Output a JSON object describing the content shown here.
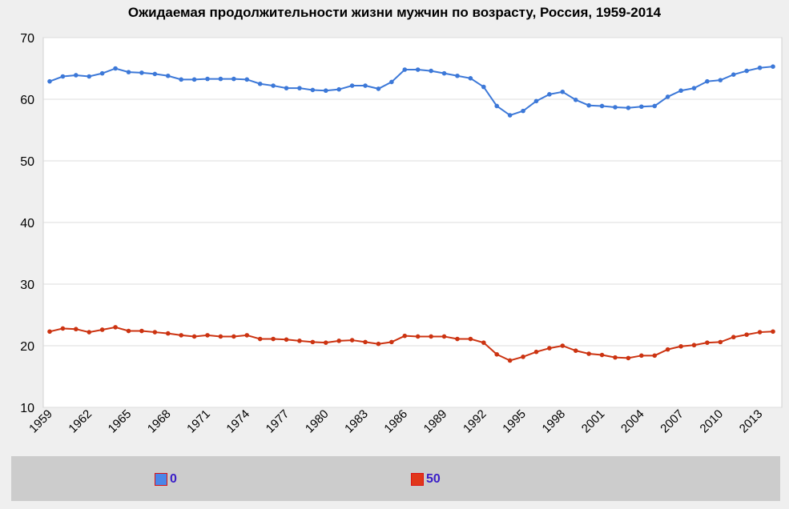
{
  "chart_data": {
    "type": "line",
    "title": "Ожидаемая продолжительности жизни мужчин по возрасту, Россия, 1959-2014",
    "xlabel": "",
    "ylabel": "",
    "ylim": [
      10,
      70
    ],
    "yticks": [
      "10",
      "20",
      "30",
      "40",
      "50",
      "60",
      "70"
    ],
    "xticks": [
      "1959",
      "1962",
      "1965",
      "1968",
      "1971",
      "1974",
      "1977",
      "1980",
      "1983",
      "1986",
      "1989",
      "1992",
      "1995",
      "1998",
      "2001",
      "2004",
      "2007",
      "2010",
      "2013"
    ],
    "x": [
      1959,
      1960,
      1961,
      1962,
      1963,
      1964,
      1965,
      1966,
      1967,
      1968,
      1969,
      1970,
      1971,
      1972,
      1973,
      1974,
      1975,
      1976,
      1977,
      1978,
      1979,
      1980,
      1981,
      1982,
      1983,
      1984,
      1985,
      1986,
      1987,
      1988,
      1989,
      1990,
      1991,
      1992,
      1993,
      1994,
      1995,
      1996,
      1997,
      1998,
      1999,
      2000,
      2001,
      2002,
      2003,
      2004,
      2005,
      2006,
      2007,
      2008,
      2009,
      2010,
      2011,
      2012,
      2013,
      2014
    ],
    "grid": true,
    "legend_position": "bottom",
    "series": [
      {
        "name": "0",
        "color": "#3c78d8",
        "values": [
          62.9,
          63.7,
          63.9,
          63.7,
          64.2,
          65.0,
          64.4,
          64.3,
          64.1,
          63.8,
          63.2,
          63.2,
          63.3,
          63.3,
          63.3,
          63.2,
          62.5,
          62.2,
          61.8,
          61.8,
          61.5,
          61.4,
          61.6,
          62.2,
          62.2,
          61.7,
          62.8,
          64.8,
          64.8,
          64.6,
          64.2,
          63.8,
          63.4,
          62.0,
          58.9,
          57.4,
          58.1,
          59.7,
          60.8,
          61.2,
          59.9,
          59.0,
          58.9,
          58.7,
          58.6,
          58.8,
          58.9,
          60.4,
          61.4,
          61.8,
          62.9,
          63.1,
          64.0,
          64.6,
          65.1,
          65.3
        ]
      },
      {
        "name": "50",
        "color": "#cc3311",
        "values": [
          22.3,
          22.8,
          22.7,
          22.2,
          22.6,
          23.0,
          22.4,
          22.4,
          22.2,
          22.0,
          21.7,
          21.5,
          21.7,
          21.5,
          21.5,
          21.7,
          21.1,
          21.1,
          21.0,
          20.8,
          20.6,
          20.5,
          20.8,
          20.9,
          20.6,
          20.3,
          20.6,
          21.6,
          21.5,
          21.5,
          21.5,
          21.1,
          21.1,
          20.5,
          18.6,
          17.6,
          18.2,
          19.0,
          19.6,
          20.0,
          19.2,
          18.7,
          18.5,
          18.1,
          18.0,
          18.4,
          18.4,
          19.4,
          19.9,
          20.1,
          20.5,
          20.6,
          21.4,
          21.8,
          22.2,
          22.3
        ]
      }
    ]
  },
  "legend": [
    {
      "label": "0",
      "color": "#4a86e8"
    },
    {
      "label": "50",
      "color": "#e0371a"
    }
  ]
}
